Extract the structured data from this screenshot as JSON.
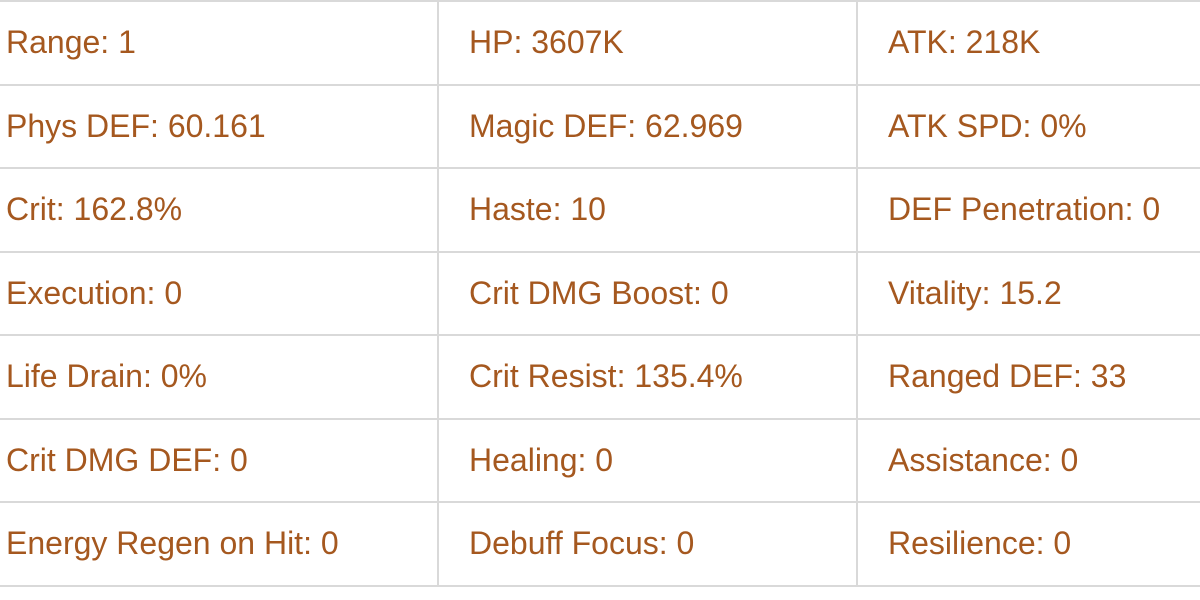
{
  "stats": [
    [
      "Range: 1",
      "HP: 3607K",
      "ATK: 218K"
    ],
    [
      "Phys DEF: 60.161",
      "Magic DEF: 62.969",
      "ATK SPD: 0%"
    ],
    [
      "Crit: 162.8%",
      "Haste: 10",
      "DEF Penetration: 0"
    ],
    [
      "Execution: 0",
      "Crit DMG Boost: 0",
      "Vitality: 15.2"
    ],
    [
      "Life Drain: 0%",
      "Crit Resist: 135.4%",
      "Ranged DEF: 33"
    ],
    [
      "Crit DMG DEF: 0",
      "Healing: 0",
      "Assistance: 0"
    ],
    [
      "Energy Regen on Hit: 0",
      "Debuff Focus: 0",
      "Resilience: 0"
    ]
  ],
  "colors": {
    "text": "#a5581f",
    "border": "#d9d9d9"
  }
}
